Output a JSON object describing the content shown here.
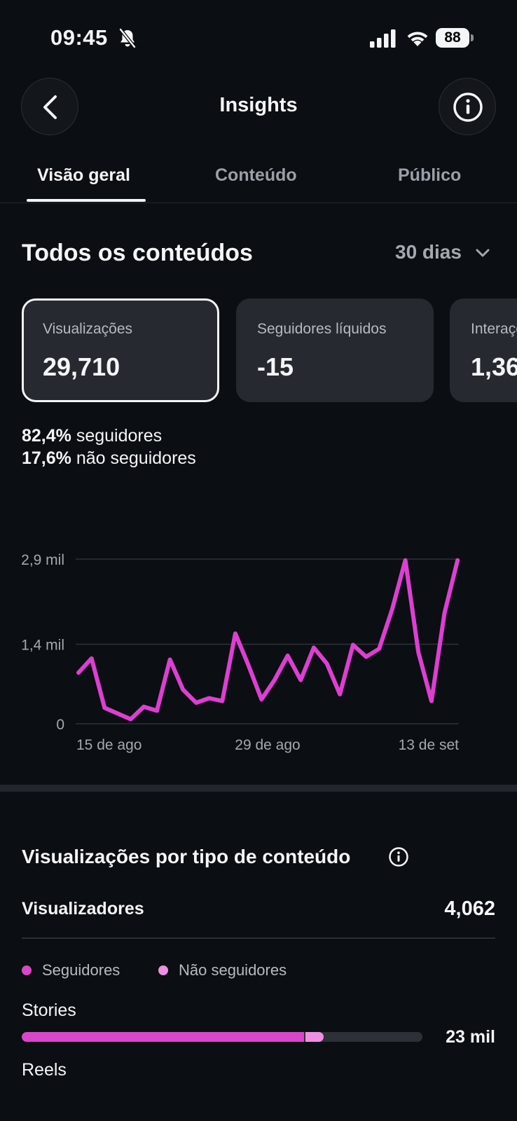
{
  "status_bar": {
    "time": "09:45",
    "battery": "88",
    "icons": [
      "bell-slash-icon",
      "signal-icon",
      "wifi-icon",
      "battery-icon"
    ]
  },
  "header": {
    "title": "Insights",
    "back_icon": "chevron-left-icon",
    "info_icon": "info-icon"
  },
  "tabs": [
    {
      "label": "Visão geral",
      "active": true
    },
    {
      "label": "Conteúdo",
      "active": false
    },
    {
      "label": "Público",
      "active": false
    }
  ],
  "overview": {
    "title": "Todos os conteúdos",
    "period": "30 dias"
  },
  "metrics": [
    {
      "label": "Visualizações",
      "value": "29,710",
      "selected": true
    },
    {
      "label": "Seguidores líquidos",
      "value": "-15",
      "selected": false
    },
    {
      "label": "Interações",
      "value": "1,36",
      "selected": false
    }
  ],
  "breakdown": {
    "followers_pct": "82,4%",
    "followers_label": "seguidores",
    "non_followers_pct": "17,6%",
    "non_followers_label": "não seguidores"
  },
  "chart_data": {
    "type": "line",
    "y_tick_labels": [
      "2,9 mil",
      "1,4 mil",
      "0"
    ],
    "y_ticks": [
      2900,
      1400,
      0
    ],
    "x_tick_labels": [
      "15 de ago",
      "29 de ago",
      "13 de set"
    ],
    "ylim": [
      0,
      2900
    ],
    "grid": true,
    "line_color": "#dd3fd2",
    "series": [
      {
        "values": [
          900,
          1150,
          280,
          180,
          80,
          300,
          230,
          1130,
          600,
          370,
          450,
          400,
          1590,
          1030,
          430,
          770,
          1200,
          770,
          1340,
          1060,
          520,
          1390,
          1180,
          1320,
          2020,
          2880,
          1260,
          400,
          1950,
          2880
        ]
      }
    ]
  },
  "content_type": {
    "title": "Visualizações por tipo de conteúdo",
    "info_icon": "info-icon",
    "viewers_label": "Visualizadores",
    "viewers_value": "4,062",
    "legend": [
      {
        "label": "Seguidores",
        "color": "#d946c8"
      },
      {
        "label": "Não seguidores",
        "color": "#ee8fe4"
      }
    ],
    "rows": [
      {
        "label": "Stories",
        "value": "23 mil",
        "followers_fraction": 0.705,
        "non_followers_fraction": 0.045
      },
      {
        "label": "Reels"
      }
    ]
  }
}
